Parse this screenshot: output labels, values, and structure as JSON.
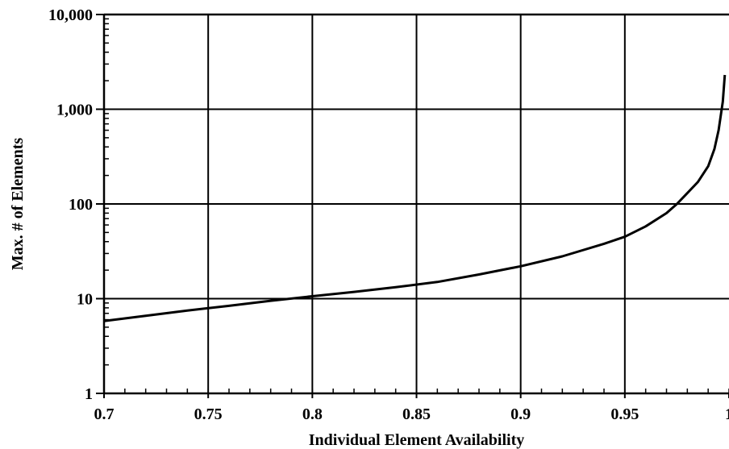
{
  "chart_data": {
    "type": "line",
    "title": "",
    "xlabel": "Individual Element Availability",
    "ylabel": "Max. # of Elements",
    "xlim": [
      0.7,
      1.0
    ],
    "ylim": [
      1,
      10000
    ],
    "y_scale": "log",
    "grid": true,
    "x_ticks": [
      0.7,
      0.75,
      0.8,
      0.85,
      0.9,
      0.95,
      1.0
    ],
    "x_tick_labels": [
      "0.7",
      "0.75",
      "0.8",
      "0.85",
      "0.9",
      "0.95",
      "1"
    ],
    "y_ticks": [
      1,
      10,
      100,
      1000,
      10000
    ],
    "y_tick_labels": [
      "1",
      "10",
      "100",
      "1,000",
      "10,000"
    ],
    "series": [
      {
        "x": [
          0.7,
          0.72,
          0.74,
          0.76,
          0.78,
          0.8,
          0.82,
          0.84,
          0.86,
          0.88,
          0.9,
          0.92,
          0.94,
          0.95,
          0.96,
          0.97,
          0.975,
          0.98,
          0.985,
          0.99,
          0.993,
          0.995,
          0.997,
          0.998
        ],
        "y": [
          5.8,
          6.6,
          7.5,
          8.4,
          9.5,
          10.6,
          11.8,
          13.2,
          15.0,
          18.0,
          22.0,
          28.0,
          38.0,
          45.0,
          58.0,
          80.0,
          100.0,
          130.0,
          170.0,
          250.0,
          380.0,
          600.0,
          1200.0,
          2300.0
        ]
      }
    ]
  }
}
